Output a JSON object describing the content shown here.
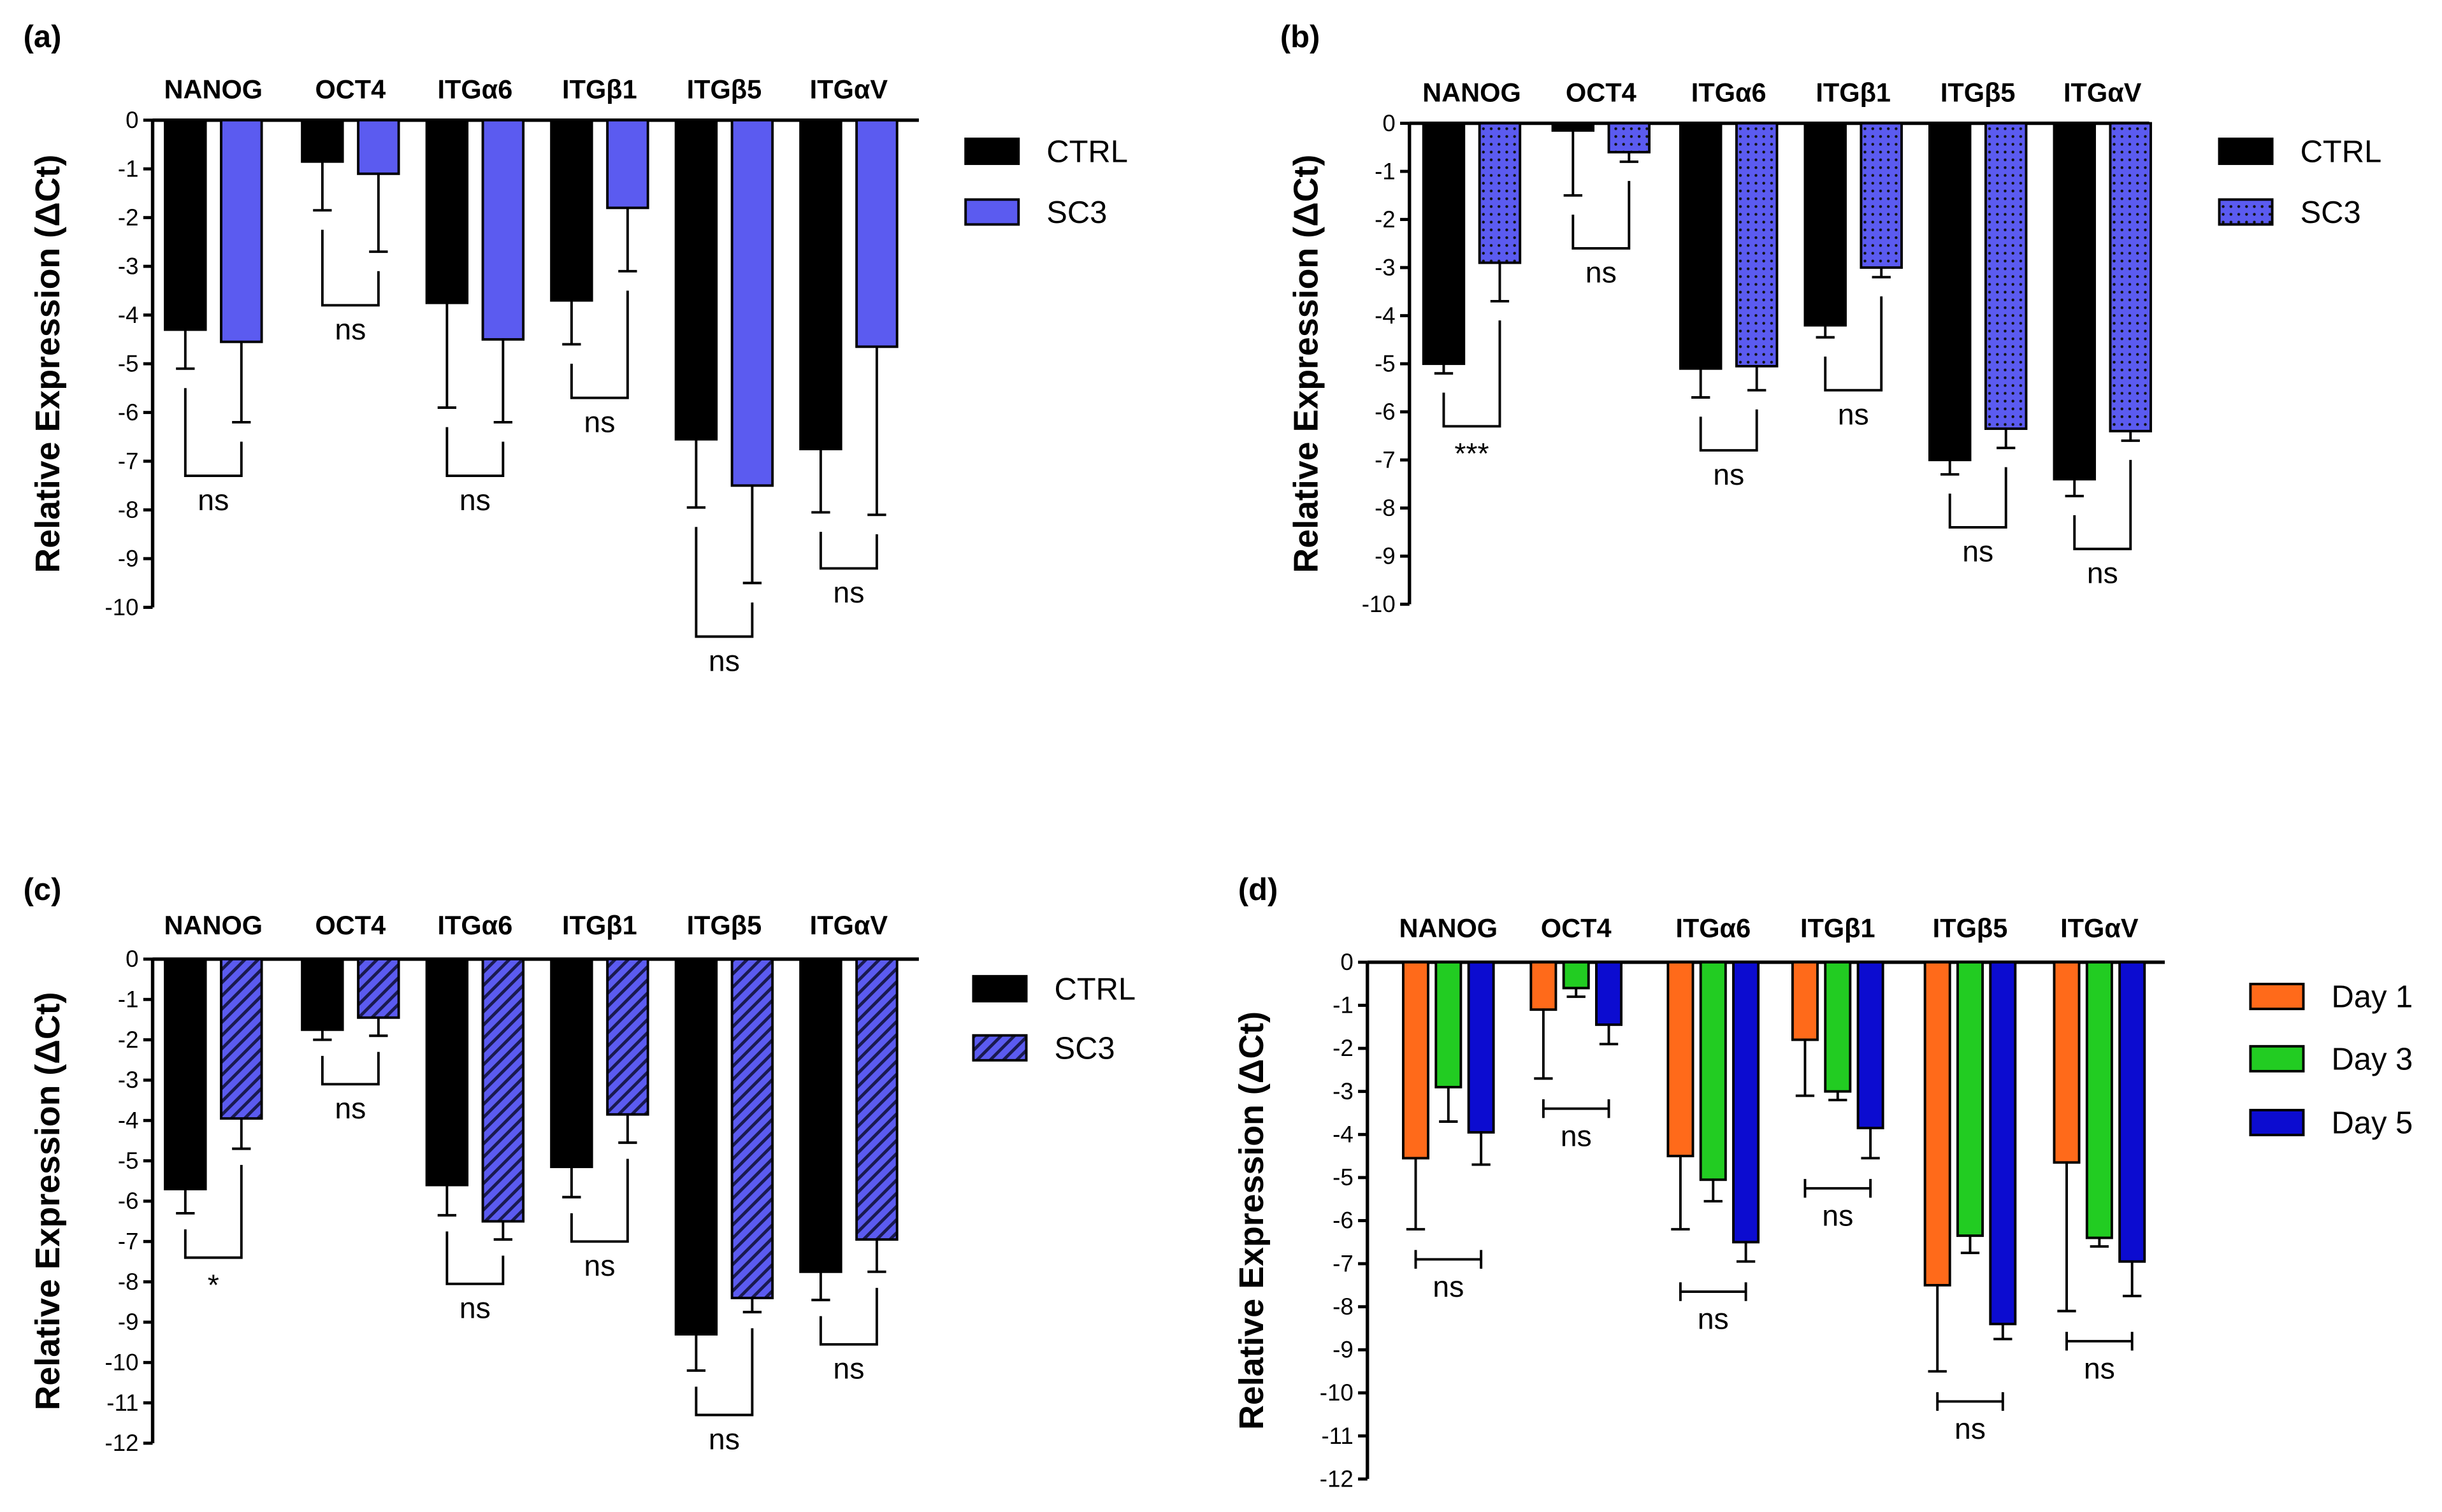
{
  "chart_data": [
    {
      "panel": "(a)",
      "type": "bar",
      "title": "",
      "xlabel": "",
      "ylabel": "Relative Expression (ΔCt)",
      "ylim": [
        -10,
        0
      ],
      "yticks": [
        "0",
        "-1",
        "-2",
        "-3",
        "-4",
        "-5",
        "-6",
        "-7",
        "-8",
        "-9",
        "-10"
      ],
      "categories": [
        "NANOG",
        "OCT4",
        "ITGα6",
        "ITGβ1",
        "ITGβ5",
        "ITGαV"
      ],
      "legend_position": "right",
      "series": [
        {
          "name": "CTRL",
          "color": "#000000",
          "fill": "solid",
          "values": [
            -4.3,
            -0.85,
            -3.75,
            -3.7,
            -6.55,
            -6.75
          ],
          "errors": [
            0.8,
            1.0,
            2.15,
            0.9,
            1.4,
            1.3
          ]
        },
        {
          "name": "SC3",
          "color": "#5b5bf0",
          "fill": "solid",
          "values": [
            -4.55,
            -1.1,
            -4.5,
            -1.8,
            -7.5,
            -4.65
          ],
          "errors": [
            1.65,
            1.6,
            1.7,
            1.3,
            2.0,
            3.45
          ]
        }
      ],
      "significance": [
        "ns",
        "ns",
        "ns",
        "ns",
        "ns",
        "ns"
      ]
    },
    {
      "panel": "(b)",
      "type": "bar",
      "title": "",
      "xlabel": "",
      "ylabel": "Relative Expression (ΔCt)",
      "ylim": [
        -10,
        0
      ],
      "yticks": [
        "0",
        "-1",
        "-2",
        "-3",
        "-4",
        "-5",
        "-6",
        "-7",
        "-8",
        "-9",
        "-10"
      ],
      "categories": [
        "NANOG",
        "OCT4",
        "ITGα6",
        "ITGβ1",
        "ITGβ5",
        "ITGαV"
      ],
      "legend_position": "right",
      "series": [
        {
          "name": "CTRL",
          "color": "#000000",
          "fill": "solid",
          "values": [
            -5.0,
            -0.15,
            -5.1,
            -4.2,
            -7.0,
            -7.4
          ],
          "errors": [
            0.2,
            1.35,
            0.6,
            0.25,
            0.3,
            0.35
          ]
        },
        {
          "name": "SC3",
          "color": "#5b5bf0",
          "fill": "dots",
          "values": [
            -2.9,
            -0.6,
            -5.05,
            -3.0,
            -6.35,
            -6.4
          ],
          "errors": [
            0.8,
            0.2,
            0.5,
            0.2,
            0.4,
            0.2
          ]
        }
      ],
      "significance": [
        "***",
        "ns",
        "ns",
        "ns",
        "ns",
        "ns"
      ]
    },
    {
      "panel": "(c)",
      "type": "bar",
      "title": "",
      "xlabel": "",
      "ylabel": "Relative Expression (ΔCt)",
      "ylim": [
        -12,
        0
      ],
      "yticks": [
        "0",
        "-1",
        "-2",
        "-3",
        "-4",
        "-5",
        "-6",
        "-7",
        "-8",
        "-9",
        "-10",
        "-11",
        "-12"
      ],
      "categories": [
        "NANOG",
        "OCT4",
        "ITGα6",
        "ITGβ1",
        "ITGβ5",
        "ITGαV"
      ],
      "legend_position": "right",
      "series": [
        {
          "name": "CTRL",
          "color": "#000000",
          "fill": "solid",
          "values": [
            -5.7,
            -1.75,
            -5.6,
            -5.15,
            -9.3,
            -7.75
          ],
          "errors": [
            0.6,
            0.25,
            0.75,
            0.75,
            0.9,
            0.7
          ]
        },
        {
          "name": "SC3",
          "color": "#5b5bf0",
          "fill": "stripes",
          "values": [
            -3.95,
            -1.45,
            -6.5,
            -3.85,
            -8.4,
            -6.95
          ],
          "errors": [
            0.75,
            0.45,
            0.45,
            0.7,
            0.35,
            0.8
          ]
        }
      ],
      "significance": [
        "*",
        "ns",
        "ns",
        "ns",
        "ns",
        "ns"
      ]
    },
    {
      "panel": "(d)",
      "type": "bar",
      "title": "",
      "xlabel": "",
      "ylabel": "Relative Expression (ΔCt)",
      "ylim": [
        -12,
        0
      ],
      "yticks": [
        "0",
        "-1",
        "-2",
        "-3",
        "-4",
        "-5",
        "-6",
        "-7",
        "-8",
        "-9",
        "-10",
        "-11",
        "-12"
      ],
      "categories": [
        "NANOG",
        "OCT4",
        "ITGα6",
        "ITGβ1",
        "ITGβ5",
        "ITGαV"
      ],
      "legend_position": "right",
      "series": [
        {
          "name": "Day 1",
          "color": "#ff6a1a",
          "fill": "solid",
          "values": [
            -4.55,
            -1.1,
            -4.5,
            -1.8,
            -7.5,
            -4.65
          ],
          "errors": [
            1.65,
            1.6,
            1.7,
            1.3,
            2.0,
            3.45
          ]
        },
        {
          "name": "Day 3",
          "color": "#22cc22",
          "fill": "solid",
          "values": [
            -2.9,
            -0.6,
            -5.05,
            -3.0,
            -6.35,
            -6.4
          ],
          "errors": [
            0.8,
            0.2,
            0.5,
            0.2,
            0.4,
            0.2
          ]
        },
        {
          "name": "Day 5",
          "color": "#0c0cd0",
          "fill": "solid",
          "values": [
            -3.95,
            -1.45,
            -6.5,
            -3.85,
            -8.4,
            -6.95
          ],
          "errors": [
            0.75,
            0.45,
            0.45,
            0.7,
            0.35,
            0.8
          ]
        }
      ],
      "significance": [
        "ns",
        "ns",
        "ns",
        "ns",
        "ns",
        "ns"
      ]
    }
  ]
}
